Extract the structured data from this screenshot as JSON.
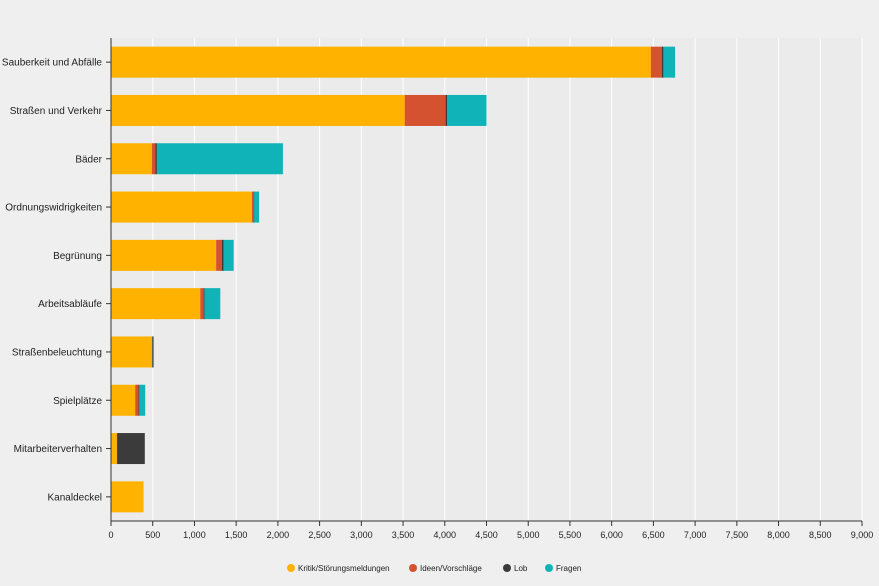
{
  "chart_data": {
    "type": "bar",
    "orientation": "horizontal",
    "stacked": true,
    "title": "",
    "xlabel": "",
    "ylabel": "",
    "xlim": [
      0,
      9000
    ],
    "x_ticks": [
      0,
      500,
      1000,
      1500,
      2000,
      2500,
      3000,
      3500,
      4000,
      4500,
      5000,
      5500,
      6000,
      6500,
      7000,
      7500,
      8000,
      8500,
      9000
    ],
    "x_tick_labels": [
      "0",
      "500",
      "1,000",
      "1,500",
      "2,000",
      "2,500",
      "3,000",
      "3,500",
      "4,000",
      "4,500",
      "5,000",
      "5,500",
      "6,000",
      "6,500",
      "7,000",
      "7,500",
      "8,000",
      "8,500",
      "9,000"
    ],
    "grid": true,
    "legend_position": "bottom",
    "categories": [
      "Sauberkeit und Abfälle",
      "Straßen und Verkehr",
      "Bäder",
      "Ordnungswidrigkeiten",
      "Begrünung",
      "Arbeitsabläufe",
      "Straßenbeleuchtung",
      "Spielplätze",
      "Mitarbeiterverhalten",
      "Kanaldeckel"
    ],
    "series": [
      {
        "name": "Kritik/Störungsmeldungen",
        "color": "#ffb300",
        "values": [
          6470,
          3520,
          490,
          1690,
          1260,
          1070,
          490,
          290,
          70,
          390
        ]
      },
      {
        "name": "Ideen/Vorschläge",
        "color": "#d4522f",
        "values": [
          130,
          490,
          40,
          20,
          70,
          40,
          5,
          40,
          5,
          0
        ]
      },
      {
        "name": "Lob",
        "color": "#3b3b3b",
        "values": [
          20,
          20,
          20,
          5,
          20,
          10,
          5,
          10,
          330,
          0
        ]
      },
      {
        "name": "Fragen",
        "color": "#0fb3b8",
        "values": [
          140,
          470,
          1510,
          60,
          120,
          190,
          15,
          70,
          0,
          0
        ]
      }
    ]
  }
}
